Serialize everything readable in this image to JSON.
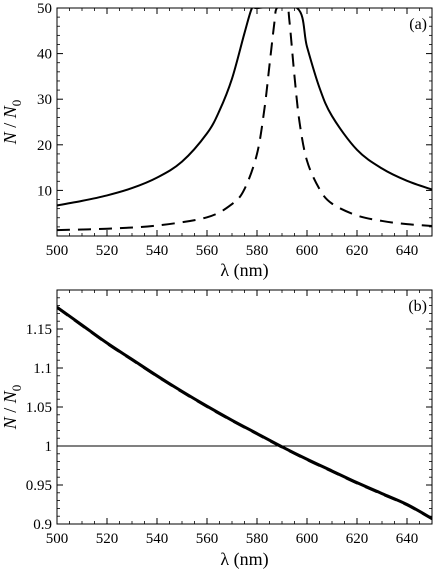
{
  "chart_data": [
    {
      "type": "line",
      "panel_label": "(a)",
      "xlabel": "λ (nm)",
      "ylabel": "N / N0",
      "xlim": [
        500,
        650
      ],
      "ylim": [
        0,
        50
      ],
      "x_ticks": [
        500,
        520,
        540,
        560,
        580,
        600,
        620,
        640
      ],
      "y_ticks": [
        10,
        20,
        30,
        40,
        50
      ],
      "y_tick_labels": [
        "10",
        "20",
        "30",
        "40",
        "50"
      ],
      "series": [
        {
          "style": "solid",
          "x": [
            500,
            510,
            520,
            530,
            540,
            550,
            560,
            565,
            570,
            575,
            578,
            580,
            596,
            600,
            605,
            610,
            620,
            630,
            640,
            650
          ],
          "y": [
            6.7,
            7.7,
            8.9,
            10.5,
            12.8,
            16.3,
            22.5,
            27.5,
            34.5,
            44.5,
            50,
            50,
            50,
            41.5,
            32.5,
            26.3,
            18.9,
            14.8,
            12.1,
            10.2
          ]
        },
        {
          "style": "dashed",
          "x": [
            500,
            520,
            540,
            560,
            570,
            575,
            580,
            583,
            585,
            587,
            588,
            592,
            593,
            595,
            597,
            600,
            605,
            610,
            620,
            630,
            640,
            650
          ],
          "y": [
            1.3,
            1.6,
            2.3,
            4.1,
            7.0,
            10.3,
            18.0,
            28,
            37.5,
            47,
            50,
            50,
            47,
            35,
            25,
            16.5,
            10.3,
            7.1,
            4.5,
            3.3,
            2.6,
            2.2
          ]
        }
      ]
    },
    {
      "type": "line",
      "panel_label": "(b)",
      "xlabel": "λ (nm)",
      "ylabel": "N / N0",
      "xlim": [
        500,
        650
      ],
      "ylim": [
        0.9,
        1.2
      ],
      "x_ticks": [
        500,
        520,
        540,
        560,
        580,
        600,
        620,
        640
      ],
      "y_ticks": [
        0.9,
        0.95,
        1.0,
        1.05,
        1.1,
        1.15
      ],
      "y_tick_labels": [
        "0.9",
        "0.95",
        "1",
        "1.05",
        "1.1",
        "1.15"
      ],
      "reference_line_y": 1.0,
      "series": [
        {
          "style": "solid",
          "x": [
            500,
            510,
            520,
            530,
            540,
            550,
            560,
            570,
            580,
            590,
            600,
            610,
            620,
            630,
            640,
            650
          ],
          "y": [
            1.178,
            1.155,
            1.132,
            1.111,
            1.09,
            1.07,
            1.051,
            1.033,
            1.016,
            0.999,
            0.983,
            0.968,
            0.953,
            0.939,
            0.925,
            0.907
          ]
        },
        {
          "style": "dashed",
          "x": [
            500,
            510,
            520,
            530,
            540,
            550,
            560,
            570,
            580,
            590,
            600,
            610,
            620,
            630,
            640,
            650
          ],
          "y": [
            1.177,
            1.154,
            1.131,
            1.11,
            1.089,
            1.069,
            1.05,
            1.032,
            1.015,
            0.998,
            0.982,
            0.967,
            0.952,
            0.938,
            0.924,
            0.906
          ]
        }
      ]
    }
  ]
}
